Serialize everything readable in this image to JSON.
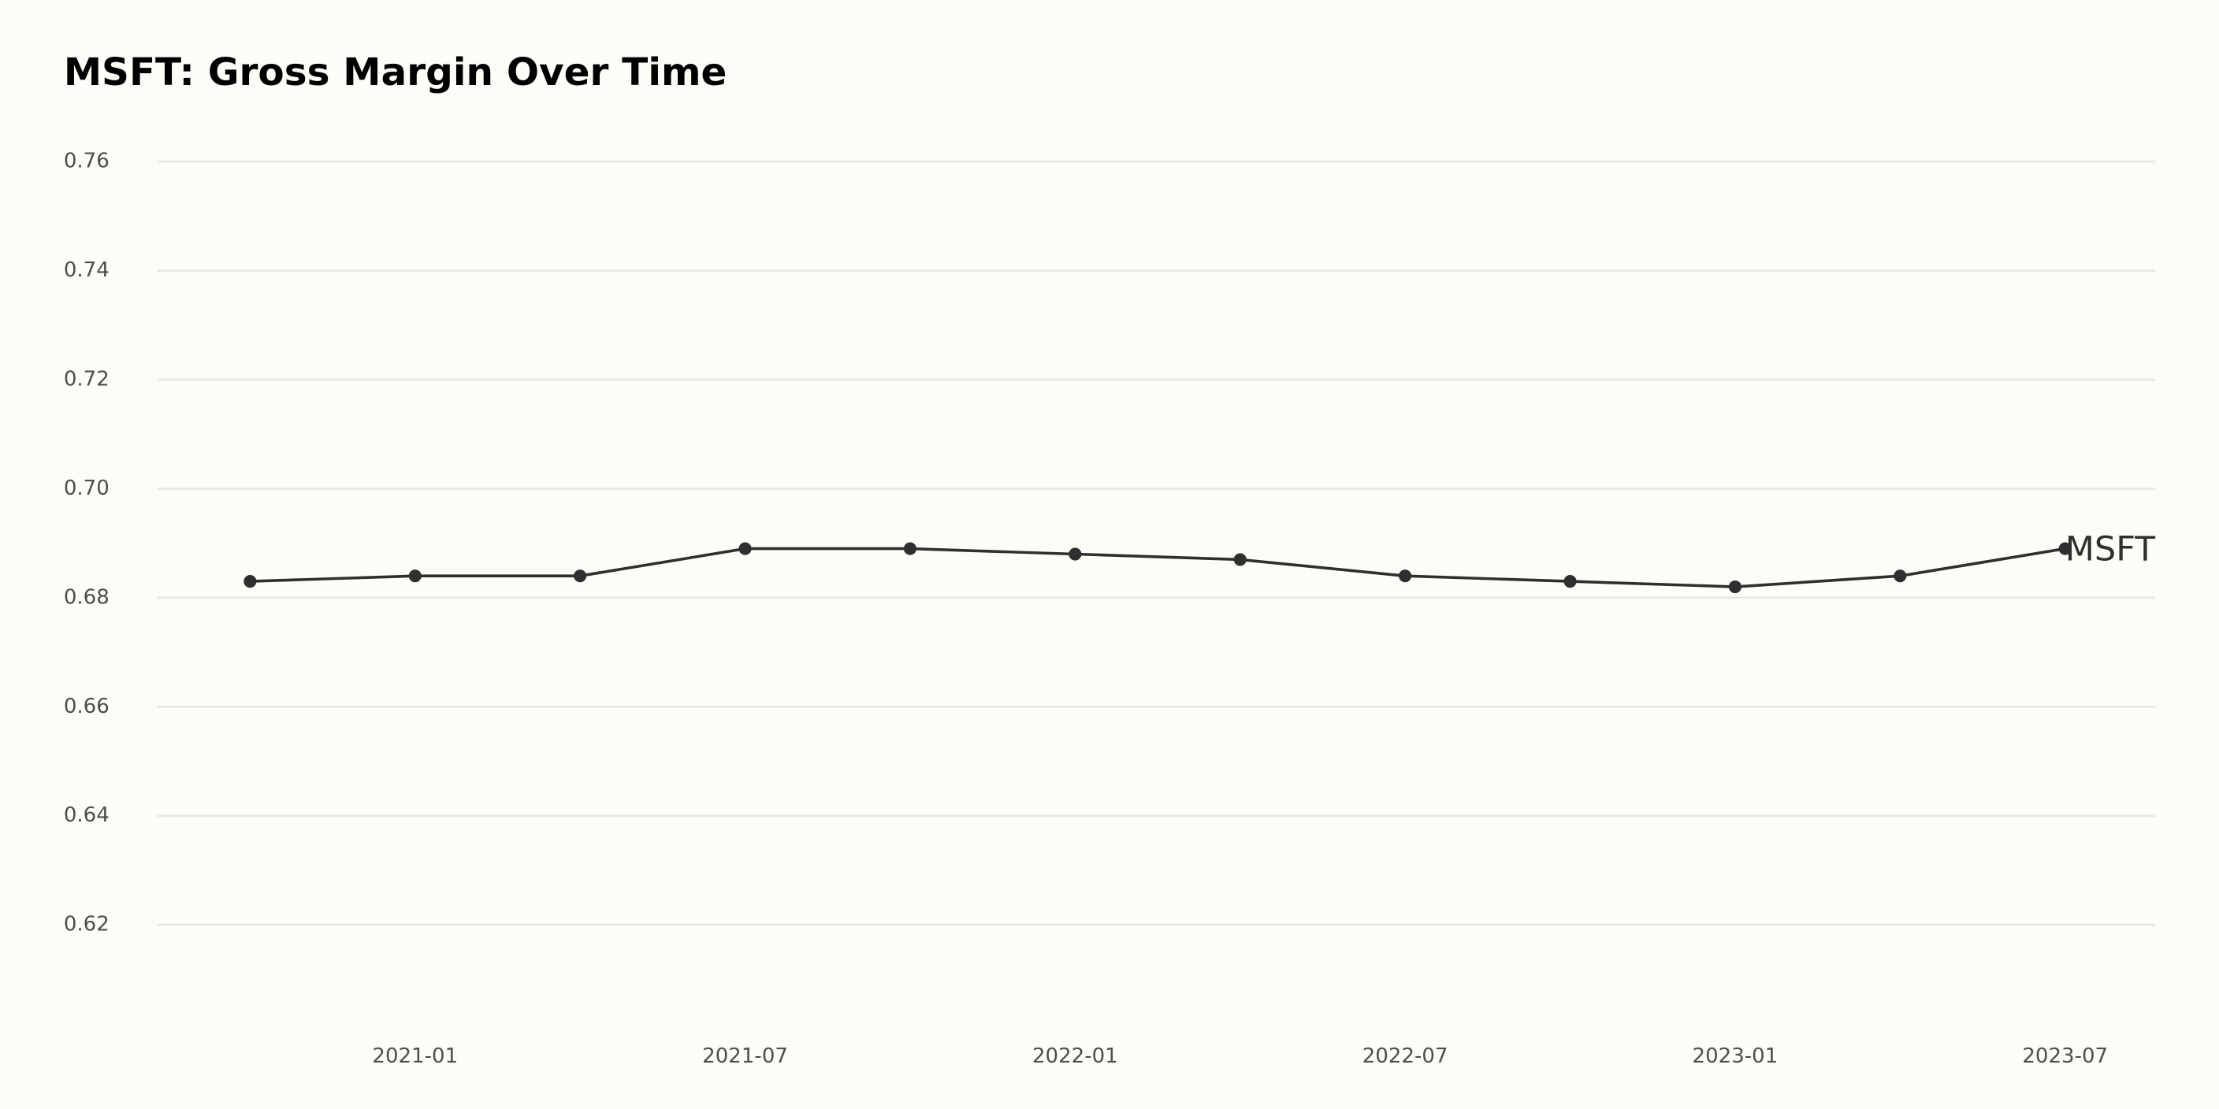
{
  "chart_data": {
    "type": "line",
    "title": "MSFT: Gross Margin Over Time",
    "x": [
      "2020-10",
      "2021-01",
      "2021-04",
      "2021-07",
      "2021-10",
      "2022-01",
      "2022-04",
      "2022-07",
      "2022-10",
      "2023-01",
      "2023-04",
      "2023-07"
    ],
    "series": [
      {
        "name": "MSFT",
        "color": "#2f2f2f",
        "values": [
          0.683,
          0.684,
          0.684,
          0.689,
          0.689,
          0.688,
          0.687,
          0.684,
          0.683,
          0.682,
          0.684,
          0.689
        ]
      }
    ],
    "xlim": [
      "2020-08",
      "2023-09"
    ],
    "xticks": [
      "2021-01",
      "2021-07",
      "2022-01",
      "2022-07",
      "2023-01",
      "2023-07"
    ],
    "ylim": [
      0.608,
      0.765
    ],
    "yticks": [
      0.62,
      0.64,
      0.66,
      0.68,
      {
        "value": 0.7,
        "label": "0.70"
      },
      0.72,
      0.74,
      0.76
    ],
    "grid": true
  }
}
